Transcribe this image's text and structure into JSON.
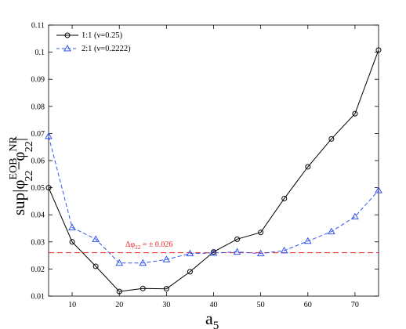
{
  "chart_data": {
    "type": "line",
    "xlabel": {
      "base": "a",
      "sub": "5"
    },
    "ylabel": {
      "lead": "sup|φ",
      "sup1": "EOB",
      "sub1": "22",
      "mid": "−φ",
      "sup2": "NR",
      "sub2": "22",
      "tail": "|"
    },
    "xlim": [
      5,
      75
    ],
    "ylim": [
      0.01,
      0.11
    ],
    "xticks": [
      "10",
      "20",
      "30",
      "40",
      "50",
      "60",
      "70"
    ],
    "yticks": [
      "0.01",
      "0.02",
      "0.03",
      "0.04",
      "0.05",
      "0.06",
      "0.07",
      "0.08",
      "0.09",
      "0.1",
      "0.11"
    ],
    "grid": false,
    "legend_position": "top-left",
    "series": [
      {
        "name": "1:1 (ν=0.25)",
        "color": "#000000",
        "line_style": "solid",
        "marker": "circle",
        "x": [
          5,
          10,
          15,
          20,
          25,
          30,
          35,
          40,
          45,
          50,
          55,
          60,
          65,
          70,
          75
        ],
        "y": [
          0.05,
          0.03,
          0.021,
          0.0117,
          0.0128,
          0.0127,
          0.019,
          0.0263,
          0.031,
          0.0335,
          0.046,
          0.0577,
          0.068,
          0.0773,
          0.1008
        ]
      },
      {
        "name": "2:1 (ν=0.2222)",
        "color": "#3355ee",
        "line_style": "dashed",
        "marker": "triangle",
        "x": [
          5,
          10,
          15,
          20,
          25,
          30,
          35,
          40,
          45,
          50,
          55,
          60,
          65,
          70,
          75
        ],
        "y": [
          0.069,
          0.0353,
          0.031,
          0.0222,
          0.0222,
          0.0235,
          0.0257,
          0.0259,
          0.0263,
          0.0257,
          0.0268,
          0.0303,
          0.0338,
          0.0393,
          0.049
        ]
      }
    ],
    "reference_line": {
      "y": 0.026,
      "color": "#ee2222",
      "line_style": "dashed",
      "label": {
        "base": "Δφ",
        "sub": "22",
        "tail": " = ± 0.026"
      }
    }
  }
}
